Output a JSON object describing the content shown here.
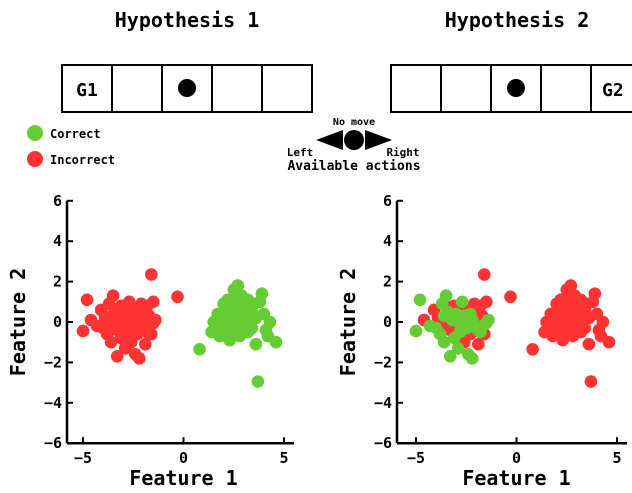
{
  "titles": {
    "left": "Hypothesis 1",
    "right": "Hypothesis 2"
  },
  "grids": {
    "left": {
      "goal_label": "G1",
      "cells": [
        "G1",
        "",
        "agent",
        "",
        "",
        ""
      ]
    },
    "right": {
      "goal_label": "G2",
      "cells": [
        "",
        "",
        "",
        "agent",
        "",
        "G2"
      ]
    }
  },
  "legend": {
    "correct_label": "Correct",
    "incorrect_label": "Incorrect",
    "correct_color": "#66cc33",
    "incorrect_color": "#ff3333"
  },
  "actions": {
    "no_move": "No move",
    "left": "Left",
    "right": "Right",
    "caption": "Available actions"
  },
  "chart_data": [
    {
      "type": "scatter",
      "xlabel": "Feature 1",
      "ylabel": "Feature 2",
      "xlim": [
        -6,
        5.5
      ],
      "ylim": [
        -6,
        6
      ],
      "xticks": [
        -5,
        0,
        5
      ],
      "yticks": [
        -6,
        -4,
        -2,
        0,
        2,
        4,
        6
      ],
      "series": [
        {
          "color": "#ff3333",
          "points": [
            [
              -5,
              -0.45
            ],
            [
              -4.8,
              1.1
            ],
            [
              -4.6,
              0.1
            ],
            [
              -4.3,
              -0.2
            ],
            [
              -4.1,
              0.6
            ],
            [
              -4.0,
              -0.3
            ],
            [
              -3.9,
              0.2
            ],
            [
              -3.8,
              -0.6
            ],
            [
              -3.7,
              0.9
            ],
            [
              -3.6,
              0.3
            ],
            [
              -3.6,
              -1.0
            ],
            [
              -3.5,
              -0.1
            ],
            [
              -3.5,
              1.3
            ],
            [
              -3.4,
              0.5
            ],
            [
              -3.3,
              -0.4
            ],
            [
              -3.3,
              -1.7
            ],
            [
              -3.2,
              0.1
            ],
            [
              -3.1,
              0.8
            ],
            [
              -3.1,
              -0.8
            ],
            [
              -3.0,
              -0.2
            ],
            [
              -3.0,
              0.4
            ],
            [
              -2.9,
              -1.3
            ],
            [
              -2.9,
              0.0
            ],
            [
              -2.8,
              0.6
            ],
            [
              -2.8,
              -0.5
            ],
            [
              -2.7,
              1.0
            ],
            [
              -2.7,
              -0.1
            ],
            [
              -2.6,
              0.3
            ],
            [
              -2.6,
              -1.0
            ],
            [
              -2.5,
              -0.3
            ],
            [
              -2.5,
              0.7
            ],
            [
              -2.4,
              0.0
            ],
            [
              -2.4,
              -1.6
            ],
            [
              -2.3,
              0.4
            ],
            [
              -2.3,
              -0.6
            ],
            [
              -2.2,
              0.1
            ],
            [
              -2.2,
              -1.8
            ],
            [
              -2.1,
              0.9
            ],
            [
              -2.0,
              -0.3
            ],
            [
              -2.0,
              0.5
            ],
            [
              -1.9,
              -1.1
            ],
            [
              -1.9,
              0.2
            ],
            [
              -1.8,
              -0.5
            ],
            [
              -1.8,
              0.8
            ],
            [
              -1.7,
              0.3
            ],
            [
              -1.7,
              -0.2
            ],
            [
              -1.6,
              2.35
            ],
            [
              -1.6,
              -0.6
            ],
            [
              -1.5,
              1.0
            ],
            [
              -1.5,
              -0.05
            ],
            [
              -1.4,
              0.1
            ],
            [
              -0.3,
              1.25
            ]
          ]
        },
        {
          "color": "#66cc33",
          "points": [
            [
              0.8,
              -1.35
            ],
            [
              1.4,
              -0.5
            ],
            [
              1.5,
              0.0
            ],
            [
              1.6,
              -0.3
            ],
            [
              1.7,
              0.4
            ],
            [
              1.8,
              -0.7
            ],
            [
              1.9,
              0.1
            ],
            [
              2.0,
              0.9
            ],
            [
              2.0,
              -0.2
            ],
            [
              2.1,
              0.5
            ],
            [
              2.2,
              -0.5
            ],
            [
              2.2,
              1.1
            ],
            [
              2.3,
              0.2
            ],
            [
              2.3,
              -0.9
            ],
            [
              2.4,
              0.7
            ],
            [
              2.4,
              -0.1
            ],
            [
              2.5,
              1.6
            ],
            [
              2.5,
              0.3
            ],
            [
              2.6,
              -0.4
            ],
            [
              2.6,
              1.0
            ],
            [
              2.7,
              0.0
            ],
            [
              2.7,
              1.8
            ],
            [
              2.8,
              0.6
            ],
            [
              2.8,
              -0.7
            ],
            [
              2.9,
              0.2
            ],
            [
              2.9,
              1.3
            ],
            [
              3.0,
              -0.2
            ],
            [
              3.0,
              0.8
            ],
            [
              3.1,
              0.3
            ],
            [
              3.2,
              -0.5
            ],
            [
              3.2,
              1.1
            ],
            [
              3.3,
              0.0
            ],
            [
              3.4,
              0.6
            ],
            [
              3.4,
              -0.3
            ],
            [
              3.5,
              0.9
            ],
            [
              3.6,
              0.2
            ],
            [
              3.6,
              -1.1
            ],
            [
              3.7,
              -2.95
            ],
            [
              3.8,
              1.0
            ],
            [
              3.9,
              1.4
            ],
            [
              4.0,
              0.4
            ],
            [
              4.1,
              -0.4
            ],
            [
              4.2,
              -0.7
            ],
            [
              4.3,
              0.0
            ],
            [
              4.6,
              -1.0
            ]
          ]
        }
      ]
    },
    {
      "type": "scatter",
      "xlabel": "Feature 1",
      "ylabel": "Feature 2",
      "xlim": [
        -6,
        5.5
      ],
      "ylim": [
        -6,
        6
      ],
      "xticks": [
        -5,
        0,
        5
      ],
      "yticks": [
        -6,
        -4,
        -2,
        0,
        2,
        4,
        6
      ],
      "series": [
        {
          "color": "#ff3333",
          "points": [
            [
              -4.6,
              0.1
            ],
            [
              -4.1,
              0.6
            ],
            [
              -3.9,
              0.2
            ],
            [
              -3.6,
              0.9
            ],
            [
              -3.5,
              -0.1
            ],
            [
              -3.3,
              -0.4
            ],
            [
              -3.1,
              0.8
            ],
            [
              -3.0,
              -0.2
            ],
            [
              -2.8,
              0.6
            ],
            [
              -2.6,
              -1.0
            ],
            [
              -2.5,
              0.7
            ],
            [
              -2.3,
              -0.6
            ],
            [
              -2.1,
              0.9
            ],
            [
              -2.0,
              0.5
            ],
            [
              -1.9,
              -1.1
            ],
            [
              -1.8,
              0.8
            ],
            [
              -1.7,
              0.3
            ],
            [
              -1.6,
              2.35
            ],
            [
              -1.6,
              -0.6
            ],
            [
              -1.5,
              1.0
            ],
            [
              -0.3,
              1.25
            ],
            [
              0.8,
              -1.35
            ],
            [
              1.4,
              -0.5
            ],
            [
              1.5,
              0.0
            ],
            [
              1.6,
              -0.3
            ],
            [
              1.7,
              0.4
            ],
            [
              1.8,
              -0.7
            ],
            [
              1.9,
              0.1
            ],
            [
              2.0,
              0.9
            ],
            [
              2.0,
              -0.2
            ],
            [
              2.1,
              0.5
            ],
            [
              2.2,
              -0.5
            ],
            [
              2.2,
              1.1
            ],
            [
              2.3,
              0.2
            ],
            [
              2.3,
              -0.9
            ],
            [
              2.4,
              0.7
            ],
            [
              2.4,
              -0.1
            ],
            [
              2.5,
              1.6
            ],
            [
              2.5,
              0.3
            ],
            [
              2.6,
              -0.4
            ],
            [
              2.6,
              1.0
            ],
            [
              2.7,
              0.0
            ],
            [
              2.7,
              1.8
            ],
            [
              2.8,
              0.6
            ],
            [
              2.8,
              -0.7
            ],
            [
              2.9,
              0.2
            ],
            [
              2.9,
              1.3
            ],
            [
              3.0,
              -0.2
            ],
            [
              3.0,
              0.8
            ],
            [
              3.1,
              0.3
            ],
            [
              3.2,
              -0.5
            ],
            [
              3.2,
              1.1
            ],
            [
              3.3,
              0.0
            ],
            [
              3.4,
              0.6
            ],
            [
              3.4,
              -0.3
            ],
            [
              3.5,
              0.9
            ],
            [
              3.6,
              0.2
            ],
            [
              3.6,
              -1.1
            ],
            [
              3.7,
              -2.95
            ],
            [
              3.8,
              1.0
            ],
            [
              3.9,
              1.4
            ],
            [
              4.0,
              0.4
            ],
            [
              4.1,
              -0.4
            ],
            [
              4.2,
              -0.7
            ],
            [
              4.3,
              0.0
            ],
            [
              4.6,
              -1.0
            ]
          ]
        },
        {
          "color": "#66cc33",
          "points": [
            [
              -5,
              -0.45
            ],
            [
              -4.8,
              1.1
            ],
            [
              -4.3,
              -0.2
            ],
            [
              -4.0,
              -0.3
            ],
            [
              -3.8,
              -0.6
            ],
            [
              -3.7,
              0.9
            ],
            [
              -3.6,
              0.3
            ],
            [
              -3.6,
              -1.0
            ],
            [
              -3.5,
              1.3
            ],
            [
              -3.4,
              0.5
            ],
            [
              -3.3,
              -1.7
            ],
            [
              -3.2,
              0.1
            ],
            [
              -3.1,
              -0.8
            ],
            [
              -3.0,
              0.4
            ],
            [
              -2.9,
              -1.3
            ],
            [
              -2.9,
              0.0
            ],
            [
              -2.8,
              -0.5
            ],
            [
              -2.7,
              1.0
            ],
            [
              -2.7,
              -0.1
            ],
            [
              -2.6,
              0.3
            ],
            [
              -2.5,
              -0.3
            ],
            [
              -2.4,
              0.0
            ],
            [
              -2.4,
              -1.6
            ],
            [
              -2.3,
              0.4
            ],
            [
              -2.2,
              0.1
            ],
            [
              -2.2,
              -1.8
            ],
            [
              -2.0,
              -0.3
            ],
            [
              -1.8,
              -0.5
            ],
            [
              -1.7,
              -0.2
            ],
            [
              -1.5,
              -0.05
            ],
            [
              -1.4,
              0.1
            ]
          ]
        }
      ]
    }
  ]
}
